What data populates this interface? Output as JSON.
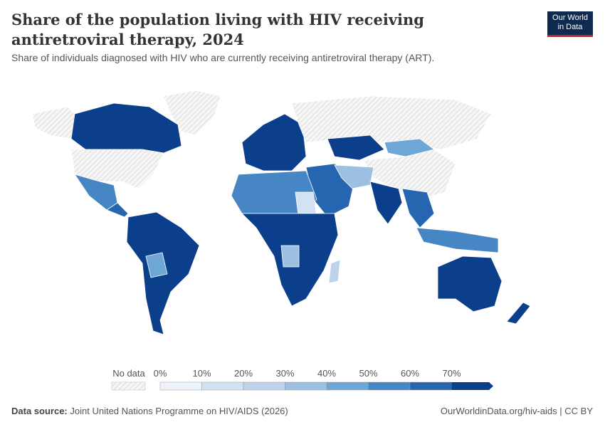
{
  "header": {
    "title": "Share of the population living with HIV receiving antiretroviral therapy, 2024",
    "subtitle": "Share of individuals diagnosed with HIV who are currently receiving antiretroviral therapy (ART).",
    "logo": [
      "Our World",
      "in Data"
    ]
  },
  "legend": {
    "no_data": "No data",
    "ticks": [
      "0%",
      "10%",
      "20%",
      "30%",
      "40%",
      "50%",
      "60%",
      "70%"
    ],
    "colors": [
      "#eef3fa",
      "#d3e2f2",
      "#bcd3ea",
      "#9cc0e2",
      "#6ea6d6",
      "#4686c5",
      "#2666b0",
      "#0b3f8c"
    ]
  },
  "footer": {
    "source_label": "Data source:",
    "source": "Joint United Nations Programme on HIV/AIDS (2026)",
    "link": "OurWorldinData.org/hiv-aids | CC BY"
  }
}
